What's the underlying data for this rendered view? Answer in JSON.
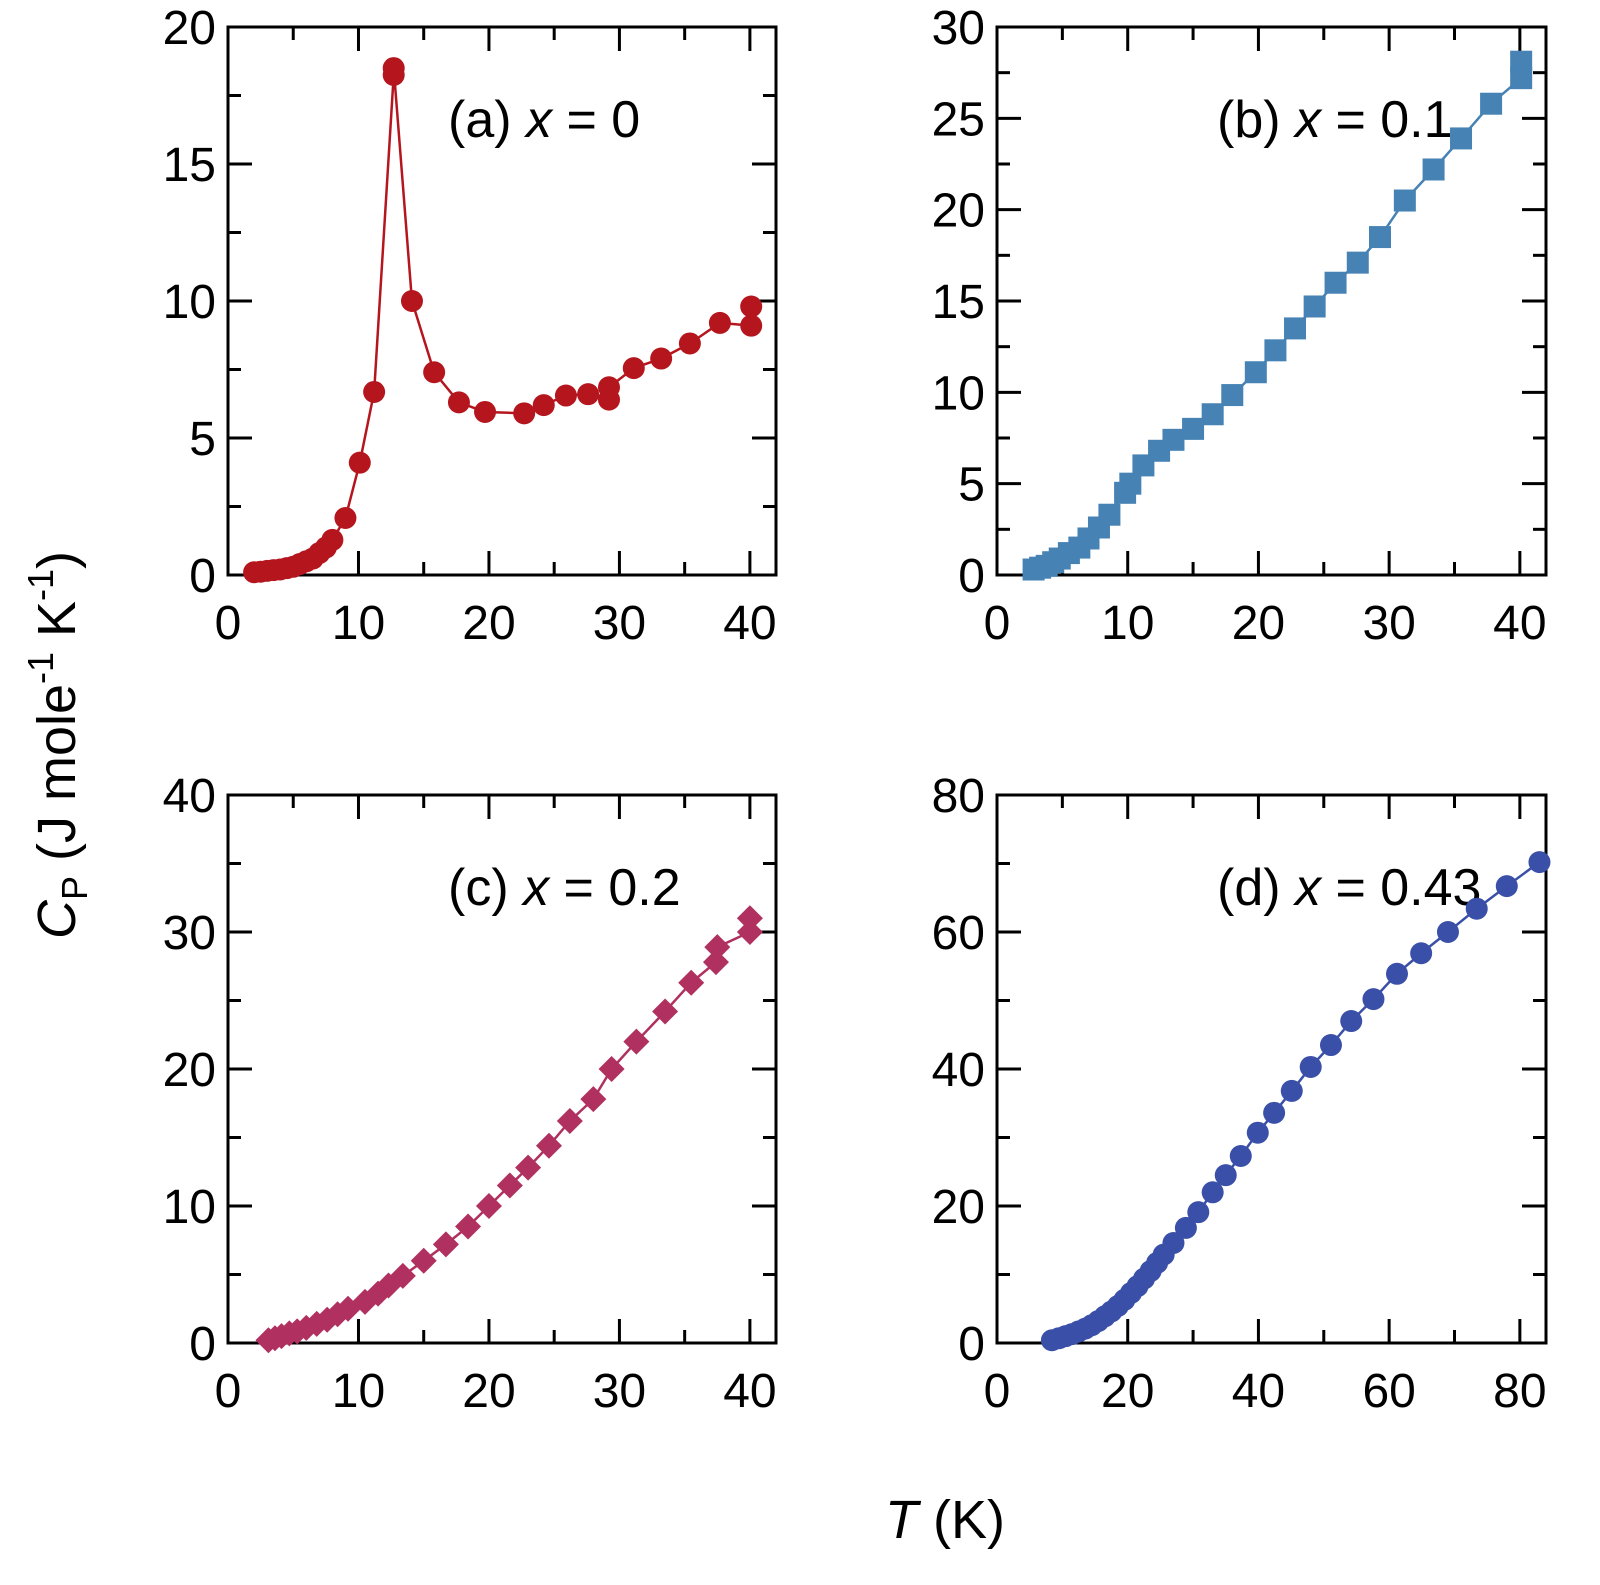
{
  "ylabel_parts": [
    "C",
    "P",
    " (J mole",
    "-1",
    " K",
    "-1",
    ")"
  ],
  "xlabel_parts": [
    "T",
    " (K)"
  ],
  "chart_data": [
    {
      "type": "line",
      "marker": "circle",
      "color": "#b5161e",
      "annotation_parts": [
        "(a) ",
        "x",
        " = 0"
      ],
      "xlim": [
        0,
        42
      ],
      "ylim": [
        0,
        20
      ],
      "xticks": [
        0,
        10,
        20,
        30,
        40
      ],
      "yticks": [
        0,
        5,
        10,
        15,
        20
      ],
      "xminor_ticks": [
        5,
        15,
        25,
        35
      ],
      "yminor_ticks": [
        2.5,
        7.5,
        12.5,
        17.5
      ],
      "x": [
        2,
        2.5,
        3,
        3.5,
        4,
        4.5,
        5,
        5.5,
        6,
        6.5,
        7,
        7.5,
        8,
        9,
        10.1,
        11.2,
        12.7,
        12.7,
        14.1,
        15.8,
        17.7,
        19.7,
        22.7,
        24.2,
        25.9,
        27.6,
        29.2,
        29.2,
        31.1,
        33.2,
        35.4,
        37.7,
        40.1,
        40.1
      ],
      "values": [
        0.1,
        0.12,
        0.15,
        0.18,
        0.2,
        0.25,
        0.3,
        0.4,
        0.5,
        0.6,
        0.8,
        1.0,
        1.28,
        2.08,
        4.1,
        6.68,
        18.25,
        18.5,
        10.0,
        7.4,
        6.3,
        5.95,
        5.9,
        6.2,
        6.55,
        6.6,
        6.4,
        6.85,
        7.55,
        7.9,
        8.45,
        9.2,
        9.1,
        9.8
      ]
    },
    {
      "type": "line",
      "marker": "square",
      "color": "#4682b4",
      "annotation_parts": [
        "(b) ",
        "x",
        " = 0.1"
      ],
      "xlim": [
        0,
        42
      ],
      "ylim": [
        0,
        30
      ],
      "xticks": [
        0,
        10,
        20,
        30,
        40
      ],
      "yticks": [
        0,
        5,
        10,
        15,
        20,
        25,
        30
      ],
      "xminor_ticks": [
        5,
        15,
        25,
        35
      ],
      "yminor_ticks": [
        2.5,
        7.5,
        12.5,
        17.5,
        22.5,
        27.5
      ],
      "x": [
        2.8,
        3.3,
        3.8,
        4.3,
        4.8,
        5.5,
        6.3,
        7,
        7.8,
        8.6,
        9.8,
        10.2,
        11.2,
        12.4,
        13.5,
        15.0,
        16.5,
        18.0,
        19.8,
        21.3,
        22.8,
        24.3,
        25.9,
        27.6,
        29.3,
        31.2,
        33.4,
        35.5,
        37.8,
        40.1,
        40.1
      ],
      "values": [
        0.3,
        0.4,
        0.5,
        0.7,
        0.9,
        1.2,
        1.5,
        2.0,
        2.6,
        3.3,
        4.5,
        5.0,
        6.0,
        6.8,
        7.4,
        8.0,
        8.8,
        9.85,
        11.1,
        12.3,
        13.5,
        14.7,
        16.0,
        17.1,
        18.5,
        20.5,
        22.2,
        23.9,
        25.8,
        27.2,
        28.1
      ]
    },
    {
      "type": "line",
      "marker": "diamond",
      "color": "#b0305f",
      "annotation_parts": [
        "(c) ",
        "x",
        " = 0.2"
      ],
      "xlim": [
        0,
        42
      ],
      "ylim": [
        0,
        40
      ],
      "xticks": [
        0,
        10,
        20,
        30,
        40
      ],
      "yticks": [
        0,
        10,
        20,
        30,
        40
      ],
      "xminor_ticks": [
        5,
        15,
        25,
        35
      ],
      "yminor_ticks": [
        5,
        15,
        25,
        35
      ],
      "x": [
        3.1,
        3.6,
        4.1,
        4.7,
        5.3,
        6,
        6.8,
        7.6,
        8.4,
        9.2,
        10.5,
        11.5,
        12.3,
        13.4,
        15.0,
        16.7,
        18.4,
        20.0,
        21.6,
        23.0,
        24.6,
        26.2,
        28.0,
        29.4,
        31.3,
        33.5,
        35.5,
        37.4,
        37.5,
        40.0,
        40.0
      ],
      "values": [
        0.2,
        0.35,
        0.5,
        0.7,
        0.85,
        1.1,
        1.4,
        1.7,
        2.1,
        2.5,
        3.0,
        3.6,
        4.2,
        4.9,
        6.0,
        7.2,
        8.5,
        10.0,
        11.5,
        12.8,
        14.4,
        16.2,
        17.8,
        20.0,
        22.0,
        24.2,
        26.3,
        27.8,
        28.9,
        30.0,
        31.0
      ]
    },
    {
      "type": "line",
      "marker": "circle",
      "color": "#3a50a8",
      "annotation_parts": [
        "(d) ",
        "x",
        " = 0.43"
      ],
      "xlim": [
        0,
        84
      ],
      "ylim": [
        0,
        80
      ],
      "xticks": [
        0,
        20,
        40,
        60,
        80
      ],
      "yticks": [
        0,
        20,
        40,
        60,
        80
      ],
      "xminor_ticks": [
        10,
        30,
        50,
        70
      ],
      "yminor_ticks": [
        10,
        30,
        50,
        70
      ],
      "x": [
        8.4,
        9.5,
        10.5,
        11.5,
        12.5,
        13.5,
        14.5,
        15.5,
        16.5,
        17.5,
        18.5,
        19.5,
        20.5,
        21.5,
        22.5,
        23.5,
        24.5,
        25.5,
        27,
        28.9,
        30.8,
        33,
        35,
        37.3,
        39.9,
        42.4,
        45.1,
        48,
        51.1,
        54.2,
        57.6,
        61.2,
        64.9,
        69,
        73.4,
        78,
        83
      ],
      "values": [
        0.4,
        0.7,
        1.0,
        1.3,
        1.7,
        2.1,
        2.6,
        3.2,
        3.9,
        4.6,
        5.4,
        6.3,
        7.3,
        8.3,
        9.4,
        10.5,
        11.7,
        12.9,
        14.6,
        16.8,
        19.1,
        22.0,
        24.5,
        27.3,
        30.7,
        33.6,
        36.8,
        40.3,
        43.5,
        47.0,
        50.2,
        53.9,
        56.9,
        60.0,
        63.4,
        66.7,
        70.2
      ]
    }
  ]
}
